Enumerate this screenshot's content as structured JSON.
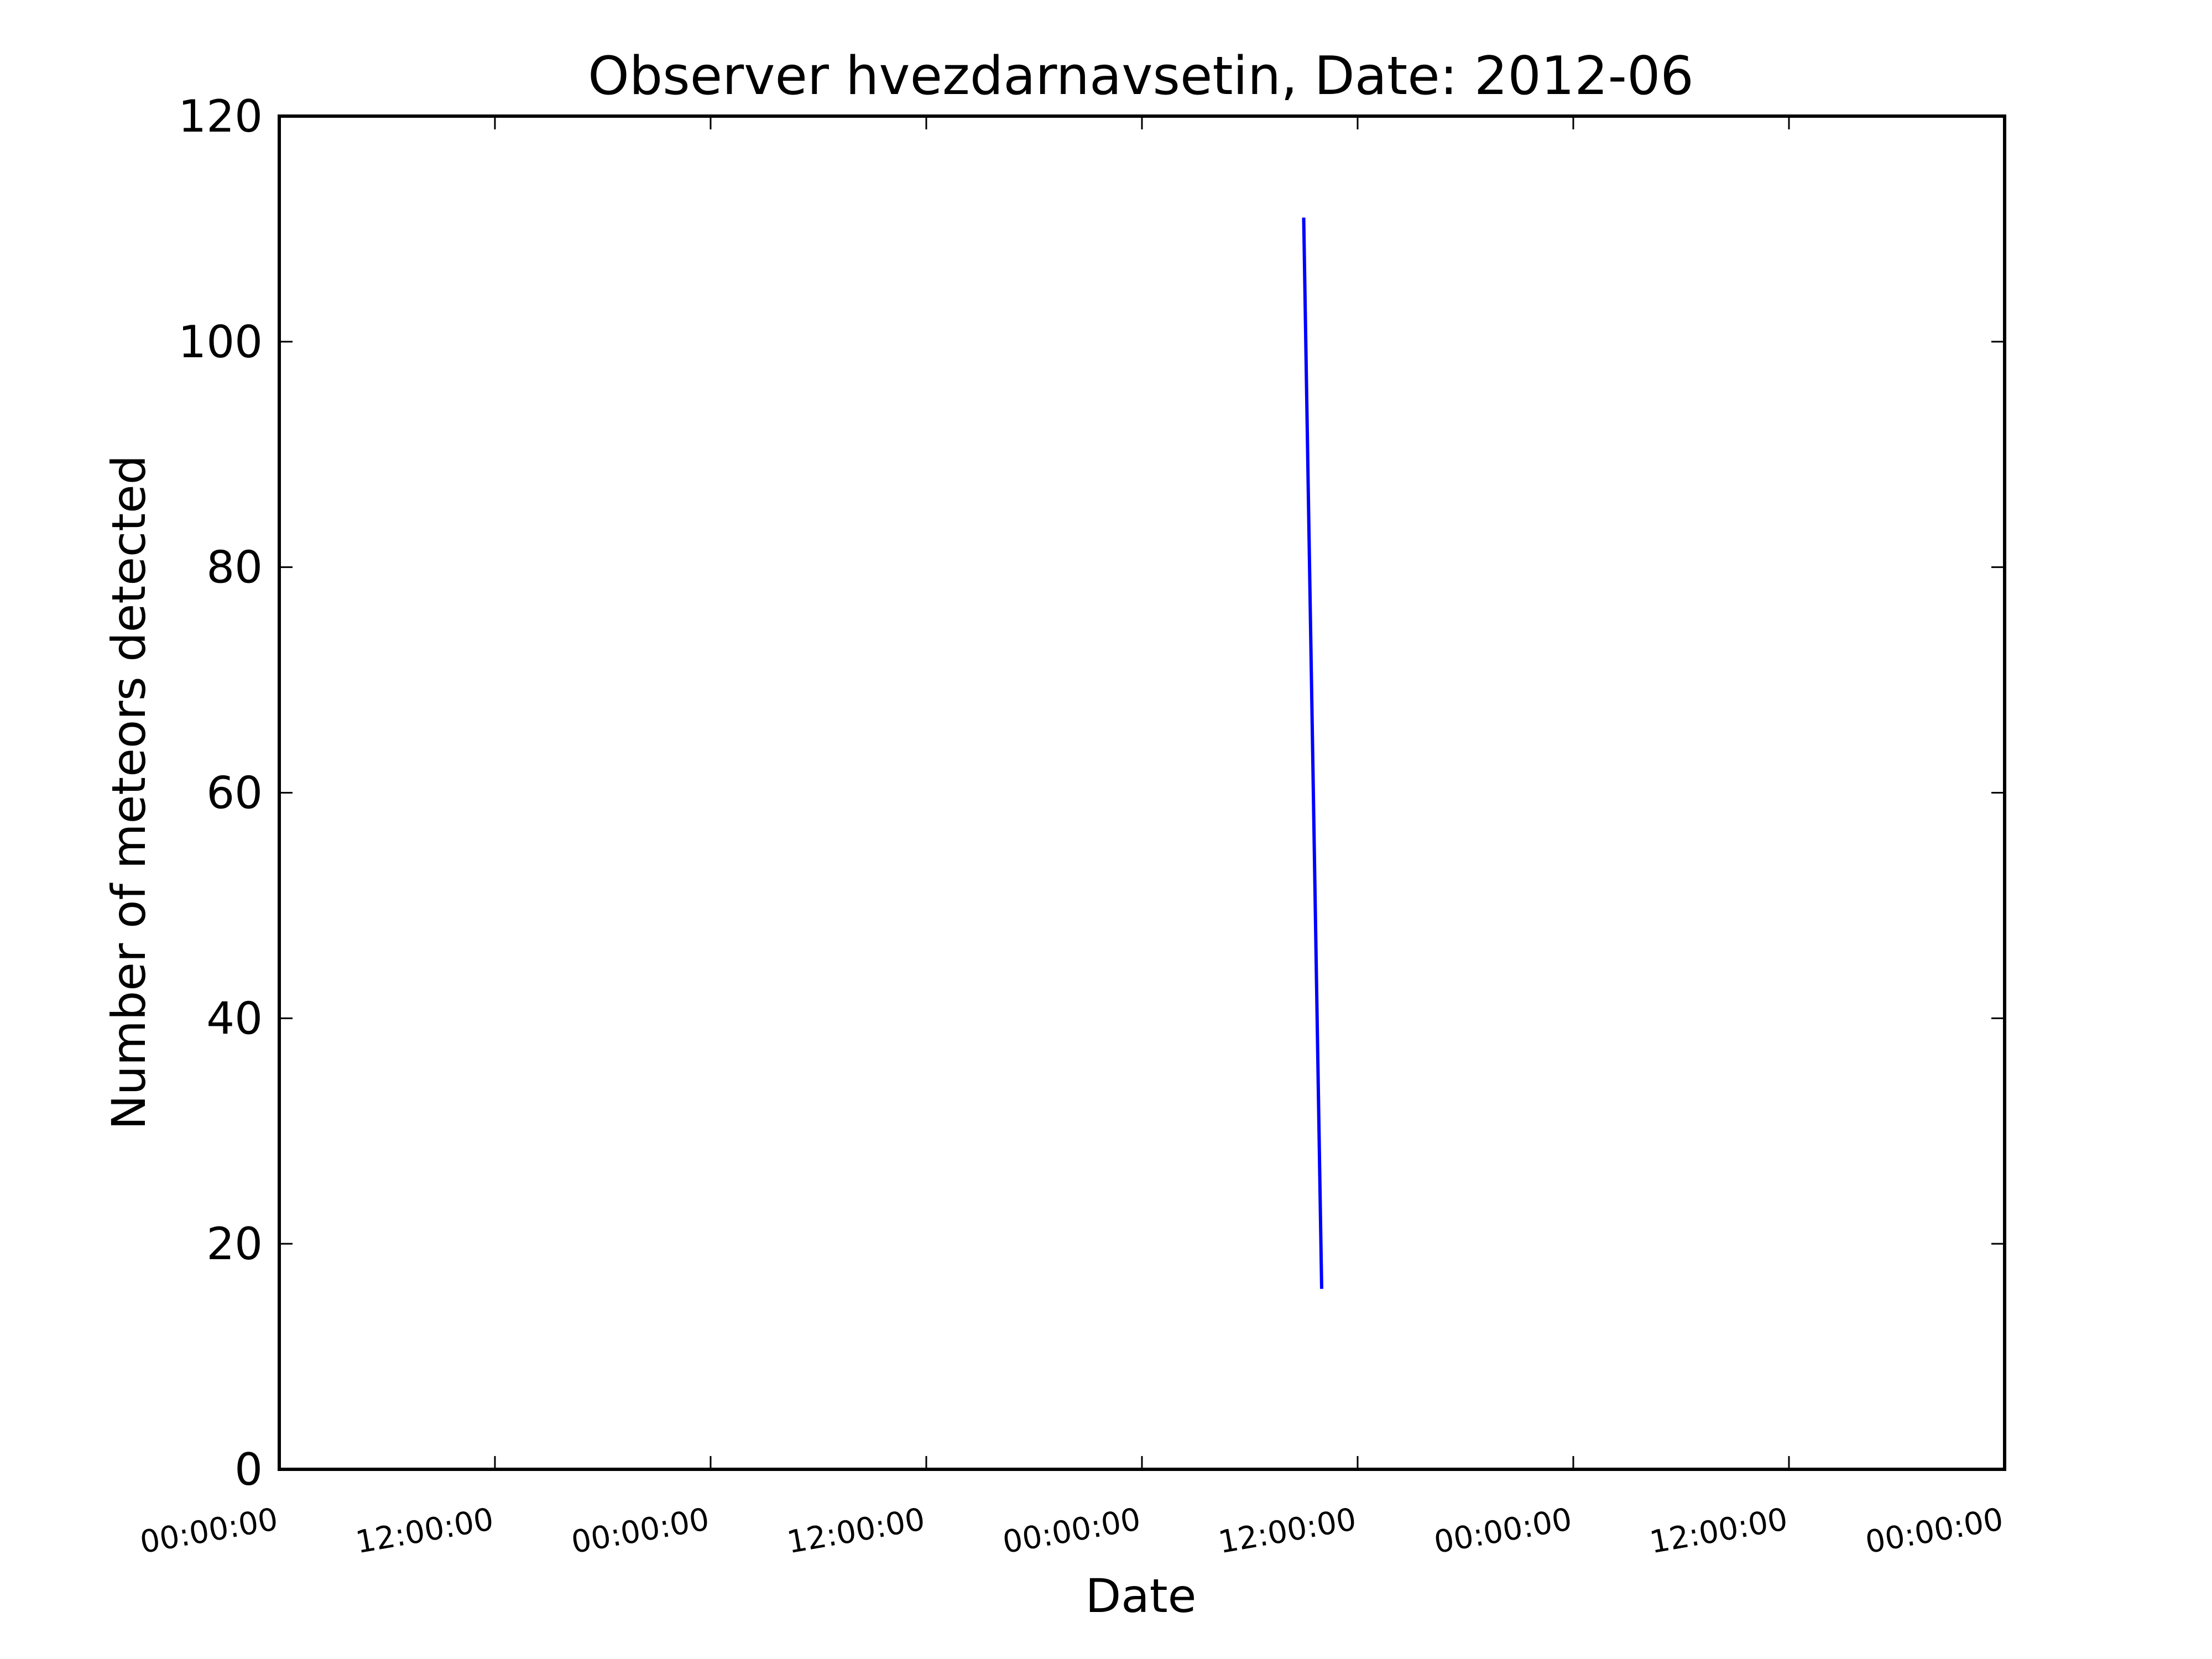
{
  "chart_data": {
    "type": "line",
    "title": "Observer hvezdarnavsetin, Date: 2012-06",
    "xlabel": "Date",
    "ylabel": "Number of meteors detected",
    "ylim": [
      0,
      120
    ],
    "yticks": [
      0,
      20,
      40,
      60,
      80,
      100,
      120
    ],
    "xlim": [
      0,
      96
    ],
    "xtick_values": [
      0,
      12,
      24,
      36,
      48,
      60,
      72,
      84,
      96
    ],
    "xtick_labels": [
      "00:00:00",
      "12:00:00",
      "00:00:00",
      "12:00:00",
      "00:00:00",
      "12:00:00",
      "00:00:00",
      "12:00:00",
      "00:00:00"
    ],
    "grid": false,
    "series": [
      {
        "x": [
          57,
          58
        ],
        "values": [
          111,
          16
        ],
        "color": "#0000ff"
      }
    ]
  }
}
